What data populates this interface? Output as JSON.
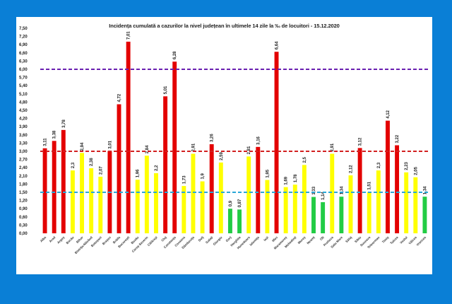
{
  "chart_data": {
    "type": "bar",
    "title": "Incidența cumulată a cazurilor la nivel județean în ultimele 14 zile   la ‰ de locuitori - 15.12.2020",
    "xlabel": "",
    "ylabel": "",
    "ylim": [
      0,
      7.5
    ],
    "ytick_step": 0.3,
    "yticks": [
      "0,00",
      "0,30",
      "0,60",
      "0,90",
      "1,20",
      "1,50",
      "1,80",
      "2,10",
      "2,40",
      "2,70",
      "3,00",
      "3,30",
      "3,60",
      "3,90",
      "4,20",
      "4,50",
      "4,80",
      "5,10",
      "5,40",
      "5,70",
      "6,00",
      "6,30",
      "6,60",
      "6,90",
      "7,20",
      "7,50"
    ],
    "grid": false,
    "legend": "none",
    "colors": {
      "red": "#e30000",
      "yellow": "#ffff00",
      "green": "#22cc44"
    },
    "reference_lines": [
      {
        "value": 6.0,
        "color": "#6a1fb0",
        "style": "dashed"
      },
      {
        "value": 3.0,
        "color": "#d22020",
        "style": "dashed"
      },
      {
        "value": 1.5,
        "color": "#2aa8d8",
        "style": "dashed"
      }
    ],
    "categories": [
      "Alba",
      "Arad",
      "Argeș",
      "Bacău",
      "Bihor",
      "Bistrița-Năsăud",
      "Botoșani",
      "Brașov",
      "Brăila",
      "București",
      "Buzău",
      "Caraș-Severin",
      "Călărași",
      "Cluj",
      "Constanța",
      "Covasna",
      "Dâmbovița",
      "Dolj",
      "Galați",
      "Giurgiu",
      "Gorj",
      "Harghita",
      "Hunedoara",
      "Ialomița",
      "Iași",
      "Ilfov",
      "Maramureș",
      "Mehedinți",
      "Mureș",
      "Neamț",
      "Olt",
      "Prahova",
      "Satu Mare",
      "Sălaj",
      "Sibiu",
      "Suceava",
      "Teleorman",
      "Timiș",
      "Tulcea",
      "Vaslui",
      "Vâlcea",
      "Vrancea"
    ],
    "values": [
      3.11,
      3.38,
      3.78,
      2.3,
      2.94,
      2.38,
      2.07,
      3.01,
      4.72,
      7.01,
      1.96,
      2.84,
      2.2,
      5.01,
      6.28,
      1.73,
      2.91,
      1.9,
      3.26,
      2.59,
      0.9,
      0.87,
      2.81,
      3.16,
      1.95,
      6.64,
      1.69,
      1.78,
      2.5,
      1.33,
      1.14,
      2.91,
      1.34,
      2.12,
      3.12,
      1.51,
      2.3,
      4.12,
      3.22,
      2.23,
      2.05,
      1.34
    ],
    "value_labels": [
      "3,11",
      "3,38",
      "3,78",
      "2,3",
      "2,94",
      "2,38",
      "2,07",
      "3,01",
      "4,72",
      "7,01",
      "1,96",
      "2,84",
      "2,2",
      "5,01",
      "6,28",
      "1,73",
      "2,91",
      "1,9",
      "3,26",
      "2,59",
      "0,9",
      "0,87",
      "2,81",
      "3,16",
      "1,95",
      "6,64",
      "1,69",
      "1,78",
      "2,5",
      "1,33",
      "1,14",
      "2,91",
      "1,34",
      "2,12",
      "3,12",
      "1,51",
      "2,3",
      "4,12",
      "3,22",
      "2,23",
      "2,05",
      "1,34"
    ],
    "bar_colors": [
      "red",
      "red",
      "red",
      "yellow",
      "yellow",
      "yellow",
      "yellow",
      "red",
      "red",
      "red",
      "yellow",
      "yellow",
      "yellow",
      "red",
      "red",
      "yellow",
      "yellow",
      "yellow",
      "red",
      "yellow",
      "green",
      "green",
      "yellow",
      "red",
      "yellow",
      "red",
      "yellow",
      "yellow",
      "yellow",
      "green",
      "green",
      "yellow",
      "green",
      "yellow",
      "red",
      "yellow",
      "yellow",
      "red",
      "red",
      "yellow",
      "yellow",
      "green"
    ]
  }
}
